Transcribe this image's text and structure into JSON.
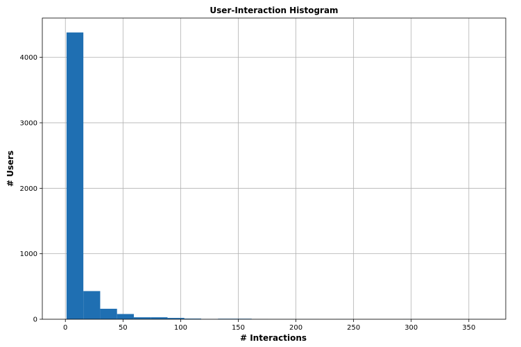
{
  "chart_data": {
    "type": "bar",
    "title": "User-Interaction Histogram",
    "xlabel": "# Interactions",
    "ylabel": "# Users",
    "xlim": [
      -20,
      382
    ],
    "ylim": [
      0,
      4600
    ],
    "grid": true,
    "xticks": [
      0,
      50,
      100,
      150,
      200,
      250,
      300,
      350
    ],
    "yticks": [
      0,
      1000,
      2000,
      3000,
      4000
    ],
    "bar_color": "#1f6fb2",
    "bins": [
      {
        "x0": 1,
        "x1": 15.6,
        "count": 4380
      },
      {
        "x0": 15.6,
        "x1": 30.2,
        "count": 430
      },
      {
        "x0": 30.2,
        "x1": 44.8,
        "count": 160
      },
      {
        "x0": 44.8,
        "x1": 59.4,
        "count": 80
      },
      {
        "x0": 59.4,
        "x1": 74.0,
        "count": 30
      },
      {
        "x0": 74.0,
        "x1": 88.6,
        "count": 30
      },
      {
        "x0": 88.6,
        "x1": 103.2,
        "count": 20
      },
      {
        "x0": 103.2,
        "x1": 117.8,
        "count": 10
      },
      {
        "x0": 117.8,
        "x1": 132.4,
        "count": 3
      },
      {
        "x0": 132.4,
        "x1": 147.0,
        "count": 8
      },
      {
        "x0": 147.0,
        "x1": 161.6,
        "count": 8
      },
      {
        "x0": 161.6,
        "x1": 176.2,
        "count": 2
      },
      {
        "x0": 176.2,
        "x1": 190.8,
        "count": 1
      },
      {
        "x0": 190.8,
        "x1": 205.4,
        "count": 1
      },
      {
        "x0": 205.4,
        "x1": 220.0,
        "count": 1
      },
      {
        "x0": 220.0,
        "x1": 234.6,
        "count": 0
      },
      {
        "x0": 234.6,
        "x1": 249.2,
        "count": 1
      },
      {
        "x0": 249.2,
        "x1": 263.8,
        "count": 0
      },
      {
        "x0": 263.8,
        "x1": 278.4,
        "count": 0
      },
      {
        "x0": 278.4,
        "x1": 293.0,
        "count": 0
      },
      {
        "x0": 293.0,
        "x1": 307.6,
        "count": 1
      },
      {
        "x0": 307.6,
        "x1": 322.2,
        "count": 0
      },
      {
        "x0": 322.2,
        "x1": 336.8,
        "count": 0
      },
      {
        "x0": 336.8,
        "x1": 351.4,
        "count": 0
      },
      {
        "x0": 351.4,
        "x1": 366.0,
        "count": 1
      }
    ]
  }
}
